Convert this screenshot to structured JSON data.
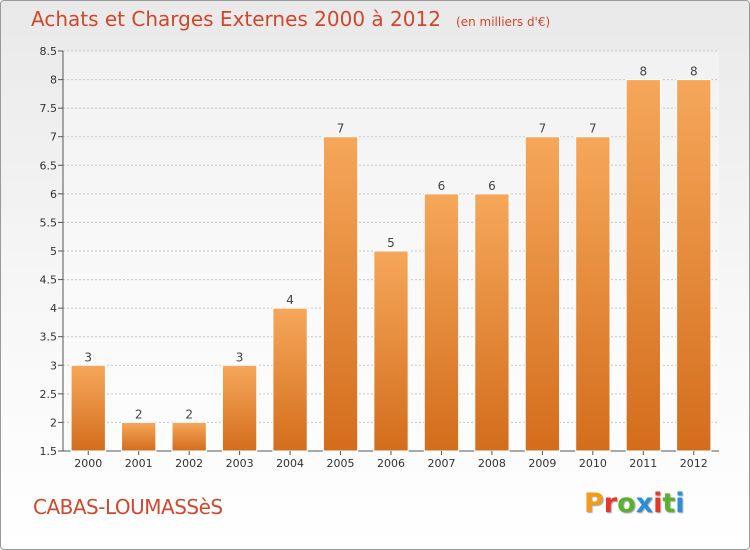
{
  "header": {
    "title": "Achats et Charges Externes 2000 à 2012",
    "subtitle": "(en milliers d'€)"
  },
  "footer": {
    "place": "CABAS-LOUMASSèS",
    "logo_text": "Proxiti",
    "logo_colors": [
      "#f39c1a",
      "#e8362b",
      "#5ab031",
      "#2a8fd8",
      "#e8362b",
      "#5ab031",
      "#2a8fd8"
    ]
  },
  "colors": {
    "text_accent": "#d0482c",
    "bar_top": "#f6a75a",
    "bar_bottom": "#d36d1c",
    "grid": "#c6c6c6"
  },
  "chart_data": {
    "type": "bar",
    "title": "Achats et Charges Externes 2000 à 2012",
    "subtitle": "(en milliers d'€)",
    "categories": [
      "2000",
      "2001",
      "2002",
      "2003",
      "2004",
      "2005",
      "2006",
      "2007",
      "2008",
      "2009",
      "2010",
      "2011",
      "2012"
    ],
    "values": [
      3,
      2,
      2,
      3,
      4,
      7,
      5,
      6,
      6,
      7,
      7,
      8,
      8
    ],
    "data_labels": [
      "3",
      "2",
      "2",
      "3",
      "4",
      "7",
      "5",
      "6",
      "6",
      "7",
      "7",
      "8",
      "8"
    ],
    "ylim": [
      1.5,
      8.5
    ],
    "yticks": [
      1.5,
      2,
      2.5,
      3,
      3.5,
      4,
      4.5,
      5,
      5.5,
      6,
      6.5,
      7,
      7.5,
      8,
      8.5
    ],
    "ytick_labels": [
      "1.5",
      "2",
      "2.5",
      "3",
      "3.5",
      "4",
      "4.5",
      "5",
      "5.5",
      "6",
      "6.5",
      "7",
      "7.5",
      "8",
      "8.5"
    ],
    "grid": true,
    "legend": false
  }
}
